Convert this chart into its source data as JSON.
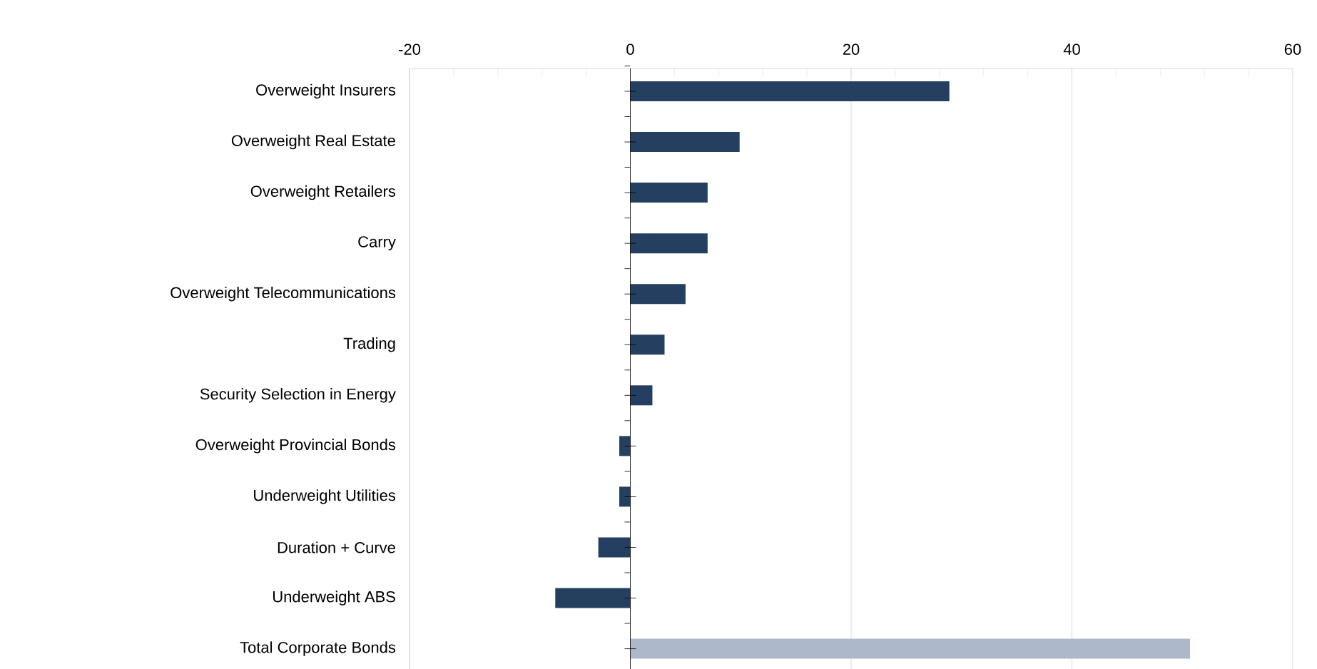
{
  "chart_data": {
    "type": "bar",
    "orientation": "horizontal",
    "categories": [
      "Overweight Insurers",
      "Overweight Real Estate",
      "Overweight Retailers",
      "Carry",
      "Overweight Telecommunications",
      "Trading",
      "Security Selection in Energy",
      "Overweight Provincial Bonds",
      "Underweight Utilities",
      "Duration + Curve",
      "Underweight ABS",
      "Total Corporate Bonds"
    ],
    "values": [
      28.9,
      9.9,
      7.0,
      7.0,
      5.0,
      3.1,
      2.0,
      -1.0,
      -1.0,
      -2.9,
      -6.8,
      50.7
    ],
    "colors": [
      "#243f60",
      "#243f60",
      "#243f60",
      "#243f60",
      "#243f60",
      "#243f60",
      "#243f60",
      "#243f60",
      "#243f60",
      "#243f60",
      "#243f60",
      "#adb9ca"
    ],
    "xlim": [
      -20,
      60
    ],
    "xticks": [
      -20,
      0,
      20,
      40,
      60
    ],
    "grid": "x"
  }
}
